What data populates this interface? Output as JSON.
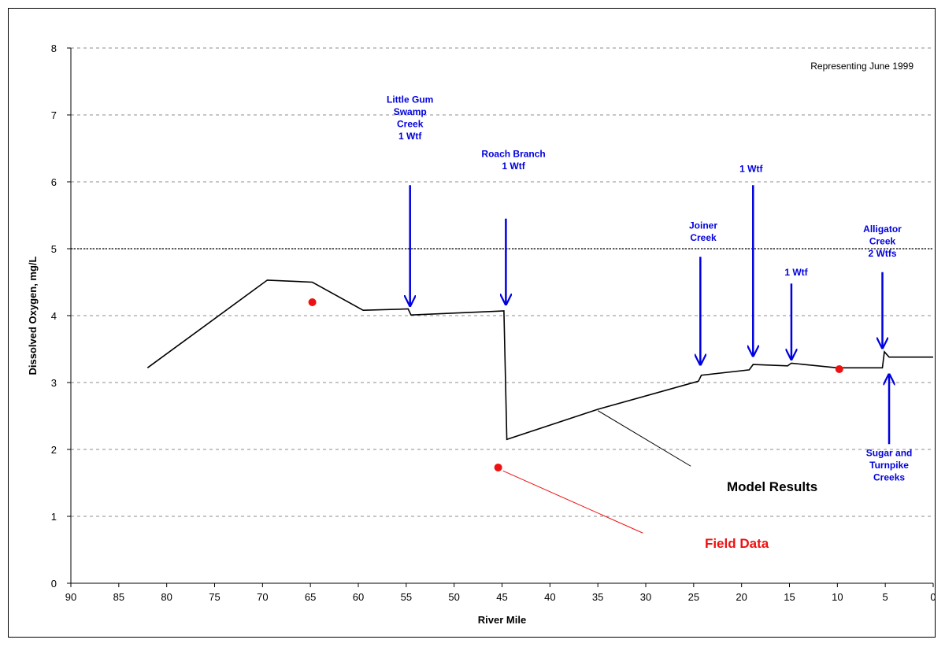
{
  "chart_data": {
    "type": "line",
    "xlabel": "River Mile",
    "ylabel": "Dissolved Oxygen, mg/L",
    "xlim": [
      90,
      0
    ],
    "ylim": [
      0,
      8
    ],
    "x_reversed": true,
    "xticks": [
      "90",
      "85",
      "80",
      "75",
      "70",
      "65",
      "60",
      "55",
      "50",
      "45",
      "40",
      "35",
      "30",
      "25",
      "20",
      "15",
      "10",
      "5",
      "0"
    ],
    "yticks": [
      "0",
      "1",
      "2",
      "3",
      "4",
      "5",
      "6",
      "7",
      "8"
    ],
    "grid": "horizontal-dashed",
    "note": "Representing June 1999",
    "standard_line": {
      "y": 5,
      "style": "dotted"
    },
    "series": [
      {
        "name": "Model Results",
        "color": "#000000",
        "points": [
          [
            82,
            3.22
          ],
          [
            69.5,
            4.53
          ],
          [
            64.8,
            4.5
          ],
          [
            59.5,
            4.08
          ],
          [
            54.8,
            4.1
          ],
          [
            54.5,
            4.01
          ],
          [
            44.8,
            4.07
          ],
          [
            44.5,
            2.15
          ],
          [
            35,
            2.6
          ],
          [
            24.5,
            3.02
          ],
          [
            24.2,
            3.11
          ],
          [
            19.2,
            3.19
          ],
          [
            18.8,
            3.27
          ],
          [
            15.2,
            3.25
          ],
          [
            14.8,
            3.29
          ],
          [
            10,
            3.22
          ],
          [
            5.3,
            3.22
          ],
          [
            5.1,
            3.46
          ],
          [
            4.6,
            3.38
          ],
          [
            0,
            3.38
          ]
        ]
      },
      {
        "name": "Field Data",
        "color": "#ee1111",
        "points": [
          [
            64.8,
            4.2
          ],
          [
            45.4,
            1.73
          ],
          [
            9.8,
            3.2
          ]
        ]
      }
    ],
    "arrows": [
      {
        "x": 54.6,
        "from_y": 5.95,
        "to_y": 4.15,
        "direction": "down"
      },
      {
        "x": 44.6,
        "from_y": 5.45,
        "to_y": 4.17,
        "direction": "down"
      },
      {
        "x": 24.3,
        "from_y": 4.88,
        "to_y": 3.27,
        "direction": "down"
      },
      {
        "x": 18.8,
        "from_y": 5.95,
        "to_y": 3.4,
        "direction": "down"
      },
      {
        "x": 14.8,
        "from_y": 4.48,
        "to_y": 3.35,
        "direction": "down"
      },
      {
        "x": 5.3,
        "from_y": 4.65,
        "to_y": 3.52,
        "direction": "down"
      },
      {
        "x": 4.6,
        "from_y": 2.08,
        "to_y": 3.12,
        "direction": "up"
      }
    ],
    "annotations": [
      {
        "lines": [
          "Little Gum",
          "Swamp",
          "Creek",
          "1 Wtf"
        ],
        "x": 54.6,
        "y": 7.18,
        "color": "#0000e0"
      },
      {
        "lines": [
          "Roach Branch",
          "1 Wtf"
        ],
        "x": 43.8,
        "y": 6.37,
        "color": "#0000e0"
      },
      {
        "lines": [
          "1 Wtf"
        ],
        "x": 19.0,
        "y": 6.15,
        "color": "#0000e0"
      },
      {
        "lines": [
          "Joiner",
          "Creek"
        ],
        "x": 24.0,
        "y": 5.3,
        "color": "#0000e0"
      },
      {
        "lines": [
          "1 Wtf"
        ],
        "x": 14.3,
        "y": 4.6,
        "color": "#0000e0"
      },
      {
        "lines": [
          "Alligator",
          "Creek",
          "2 Wtfs"
        ],
        "x": 5.3,
        "y": 5.25,
        "color": "#0000e0"
      },
      {
        "lines": [
          "Sugar and",
          "Turnpike",
          "Creeks"
        ],
        "x": 4.6,
        "y": 1.9,
        "color": "#0000e0"
      }
    ],
    "callouts": [
      {
        "text": "Model Results",
        "text_x": 16.8,
        "text_y": 1.45,
        "leader": [
          [
            35,
            2.58
          ],
          [
            25.3,
            1.75
          ]
        ],
        "color": "#000000"
      },
      {
        "text": "Field Data",
        "text_x": 20.5,
        "text_y": 0.6,
        "leader": [
          [
            44.9,
            1.68
          ],
          [
            30.3,
            0.75
          ]
        ],
        "color": "#ee1111"
      }
    ]
  }
}
